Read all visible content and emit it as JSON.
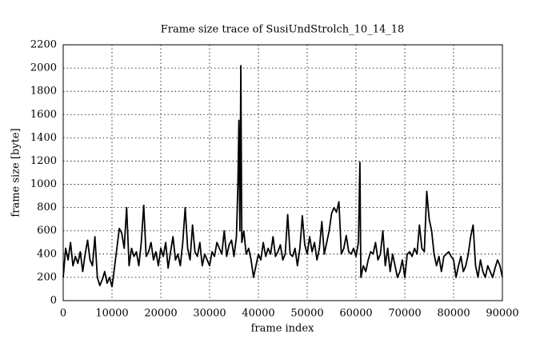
{
  "chart_data": {
    "type": "line",
    "title": "Frame size trace of SusiUndStrolch_10_14_18",
    "xlabel": "frame index",
    "ylabel": "frame size [byte]",
    "xlim": [
      0,
      90000
    ],
    "xticks": [
      0,
      10000,
      20000,
      30000,
      40000,
      50000,
      60000,
      70000,
      80000,
      90000
    ],
    "ylim": [
      0,
      2200
    ],
    "yticks": [
      0,
      200,
      400,
      600,
      800,
      1000,
      1200,
      1400,
      1600,
      1800,
      2000,
      2200
    ],
    "grid": true,
    "series": [
      {
        "color": "#000000",
        "x": [
          0,
          500,
          1000,
          1500,
          2000,
          2500,
          3000,
          3500,
          4000,
          4500,
          5000,
          5500,
          6000,
          6500,
          7000,
          7500,
          8000,
          8500,
          9000,
          9500,
          10000,
          10500,
          11000,
          11500,
          12000,
          12500,
          13000,
          13500,
          14000,
          14500,
          15000,
          15500,
          16000,
          16500,
          17000,
          17500,
          18000,
          18500,
          19000,
          19500,
          20000,
          20500,
          21000,
          21500,
          22000,
          22500,
          23000,
          23500,
          24000,
          24500,
          25000,
          25500,
          26000,
          26500,
          27000,
          27500,
          28000,
          28500,
          29000,
          29500,
          30000,
          30500,
          31000,
          31500,
          32000,
          32500,
          33000,
          33500,
          34000,
          34500,
          35000,
          35500,
          35800,
          36000,
          36200,
          36400,
          36600,
          37000,
          37500,
          38000,
          38500,
          39000,
          39500,
          40000,
          40500,
          41000,
          41500,
          42000,
          42500,
          43000,
          43500,
          44000,
          44500,
          45000,
          45500,
          46000,
          46500,
          47000,
          47500,
          48000,
          48500,
          49000,
          49500,
          50000,
          50500,
          51000,
          51500,
          52000,
          52500,
          53000,
          53500,
          54000,
          54500,
          55000,
          55500,
          56000,
          56500,
          57000,
          57500,
          58000,
          58500,
          59000,
          59500,
          60000,
          60500,
          60800,
          61000,
          61500,
          62000,
          62500,
          63000,
          63500,
          64000,
          64500,
          65000,
          65500,
          66000,
          66500,
          67000,
          67500,
          68000,
          68500,
          69000,
          69500,
          70000,
          70500,
          71000,
          71500,
          72000,
          72500,
          73000,
          73500,
          74000,
          74500,
          75000,
          75500,
          76000,
          76500,
          77000,
          77500,
          78000,
          78500,
          79000,
          79500,
          80000,
          80500,
          81000,
          81500,
          82000,
          82500,
          83000,
          83500,
          84000,
          84500,
          85000,
          85500,
          86000,
          86500,
          87000,
          87500,
          88000,
          88500,
          89000,
          89500,
          90000
        ],
        "values": [
          200,
          450,
          350,
          500,
          300,
          380,
          320,
          420,
          250,
          400,
          520,
          350,
          300,
          550,
          200,
          130,
          180,
          250,
          150,
          200,
          120,
          280,
          450,
          620,
          580,
          450,
          800,
          300,
          450,
          380,
          420,
          300,
          500,
          820,
          380,
          420,
          500,
          350,
          420,
          300,
          450,
          380,
          500,
          280,
          420,
          550,
          350,
          400,
          300,
          500,
          800,
          450,
          350,
          650,
          420,
          380,
          500,
          300,
          400,
          350,
          300,
          420,
          380,
          500,
          450,
          400,
          600,
          380,
          480,
          520,
          380,
          550,
          1000,
          1550,
          600,
          2020,
          500,
          600,
          400,
          450,
          350,
          200,
          300,
          400,
          350,
          500,
          380,
          450,
          400,
          550,
          380,
          420,
          480,
          350,
          400,
          740,
          400,
          380,
          450,
          300,
          450,
          730,
          480,
          400,
          550,
          420,
          500,
          350,
          450,
          680,
          400,
          500,
          600,
          750,
          800,
          760,
          850,
          400,
          450,
          560,
          420,
          400,
          450,
          380,
          500,
          1190,
          200,
          300,
          250,
          350,
          420,
          400,
          500,
          350,
          400,
          600,
          300,
          450,
          250,
          400,
          300,
          200,
          250,
          350,
          200,
          400,
          420,
          380,
          450,
          400,
          650,
          450,
          420,
          940,
          700,
          600,
          400,
          300,
          380,
          250,
          380,
          400,
          420,
          380,
          350,
          200,
          300,
          380,
          250,
          300,
          400,
          550,
          650,
          300,
          200,
          350,
          250,
          200,
          300,
          250,
          200,
          280,
          350,
          300,
          200
        ]
      }
    ]
  }
}
